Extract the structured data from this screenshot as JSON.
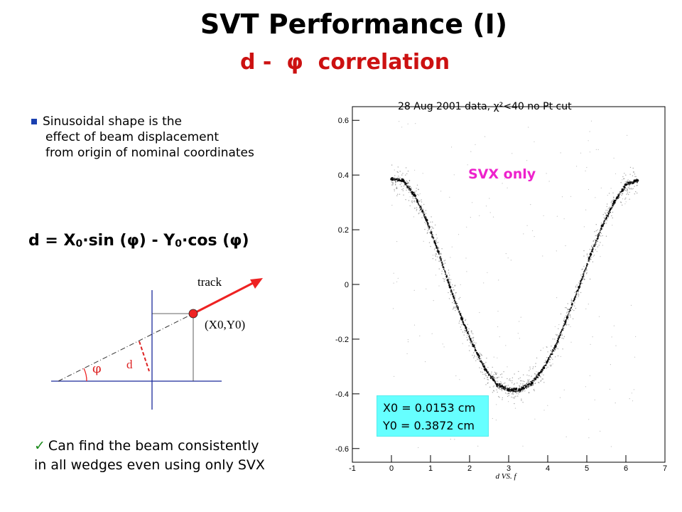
{
  "title": "SVT   Performance (I)",
  "subtitle": "d -  φ  correlation",
  "bullet": {
    "line1": "Sinusoidal shape is the",
    "line2": "effect of beam displacement",
    "line3": "from origin of nominal coordinates"
  },
  "formula": {
    "part1": "d = X",
    "sub0": "0",
    "part2": "·sin (φ) - Y",
    "sub1": "0",
    "part3": "·cos (φ)"
  },
  "diagram": {
    "track_label": "track",
    "point_label": "(X0,Y0)",
    "d_label": "d",
    "phi_label": "φ"
  },
  "check": {
    "line1": "Can find the beam consistently",
    "line2": "in all wedges even using only SVX"
  },
  "chart_note": "28 Aug 2001 data, χ²<40 no Pt cut",
  "svx_label": "SVX only",
  "result": {
    "x0": "X0 = 0.0153 cm",
    "y0": "Y0 = 0.3872 cm"
  },
  "chart_data": {
    "type": "scatter",
    "xlabel": "d VS. f",
    "ylabel": "",
    "xlim": [
      -1,
      7
    ],
    "ylim": [
      -0.65,
      0.65
    ],
    "x_ticks": [
      "-1",
      "0",
      "1",
      "2",
      "3",
      "4",
      "5",
      "6",
      "7"
    ],
    "y_ticks": [
      "0.6",
      "0.4",
      "0.2",
      "0",
      "-0.2",
      "-0.4",
      "-0.6"
    ],
    "series": [
      {
        "x": [
          0.0,
          0.3,
          0.6,
          0.9,
          1.2,
          1.5,
          1.8,
          2.1,
          2.4,
          2.7,
          3.0,
          3.3,
          3.6,
          3.9,
          4.2,
          4.5,
          4.8,
          5.1,
          5.4,
          5.7,
          6.0,
          6.3
        ],
        "y": [
          0.385,
          0.38,
          0.325,
          0.235,
          0.12,
          -0.01,
          -0.125,
          -0.225,
          -0.31,
          -0.365,
          -0.385,
          -0.385,
          -0.36,
          -0.305,
          -0.225,
          -0.12,
          -0.01,
          0.11,
          0.215,
          0.3,
          0.365,
          0.38
        ]
      }
    ],
    "annotation_colors": {
      "svx": "#ee22cc",
      "box": "#66ffff",
      "track": "#ee2222"
    }
  }
}
